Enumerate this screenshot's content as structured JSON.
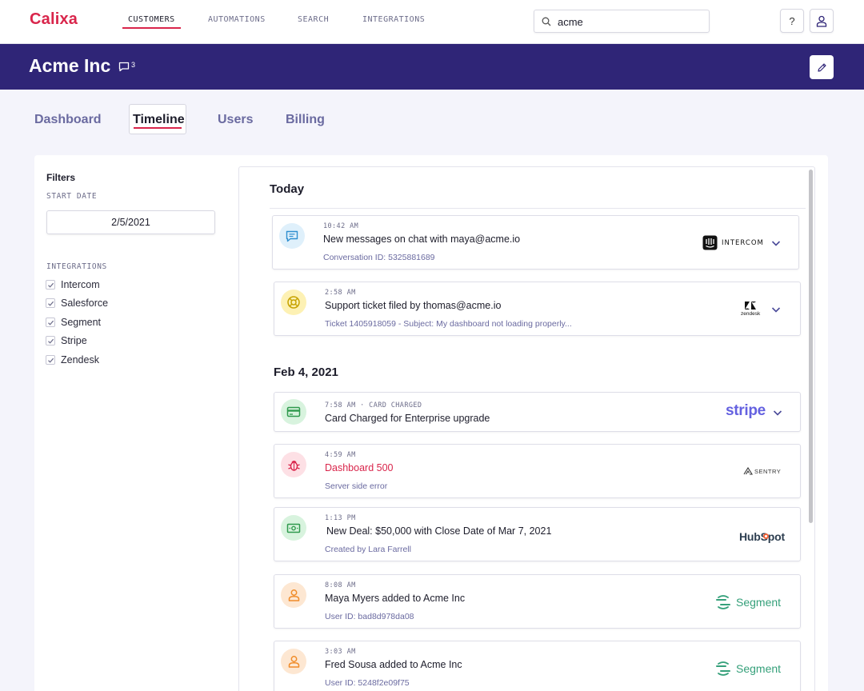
{
  "app": {
    "logo": "Calixa"
  },
  "nav": {
    "items": [
      "CUSTOMERS",
      "AUTOMATIONS",
      "SEARCH",
      "INTEGRATIONS"
    ],
    "active": "CUSTOMERS"
  },
  "search": {
    "value": "acme",
    "icon": "search-icon"
  },
  "top_buttons": {
    "help_label": "?",
    "user_icon": "user-icon"
  },
  "header": {
    "company": "Acme Inc",
    "message_count": "3",
    "edit_icon": "pencil-icon"
  },
  "tabs": {
    "items": [
      "Dashboard",
      "Timeline",
      "Users",
      "Billing"
    ],
    "active": "Timeline"
  },
  "filters": {
    "title": "Filters",
    "start_date_label": "START DATE",
    "start_date": "2/5/2021",
    "integrations_label": "INTEGRATIONS",
    "integrations": [
      "Intercom",
      "Salesforce",
      "Segment",
      "Stripe",
      "Zendesk"
    ]
  },
  "timeline": {
    "sections": [
      {
        "title": "Today",
        "events": [
          {
            "time": "10:42 AM",
            "title": "New messages on chat with maya@acme.io",
            "subtitle": "Conversation ID: 5325881689",
            "source": "INTERCOM",
            "icon": "chat-icon",
            "color": "#dff0fb"
          },
          {
            "time": "2:58 AM",
            "title": "Support ticket filed by thomas@acme.io",
            "subtitle": "Ticket 1405918059 - Subject: My dashboard not loading properly...",
            "source": "zendesk",
            "icon": "lifebuoy-icon",
            "color": "#fdf1b4"
          }
        ]
      },
      {
        "title": "Feb 4, 2021",
        "events": [
          {
            "time": "7:58 AM · CARD CHARGED",
            "title": "Card Charged for Enterprise upgrade",
            "subtitle": "",
            "source": "stripe",
            "icon": "credit-card-icon",
            "color": "#d8f3de"
          },
          {
            "time": "4:59 AM",
            "title": "Dashboard 500",
            "subtitle": "Server side error",
            "source": "SENTRY",
            "icon": "bug-icon",
            "color": "#fde0e5"
          },
          {
            "time": "1:13 PM",
            "title": "New Deal: $50,000 with Close Date of Mar 7, 2021",
            "subtitle": "Created by Lara Farrell",
            "source": "HubSpot",
            "icon": "money-icon",
            "color": "#d8f3de"
          },
          {
            "time": "8:08 AM",
            "title": "Maya Myers added to Acme Inc",
            "subtitle": "User ID: bad8d978da08",
            "source": "Segment",
            "icon": "person-icon",
            "color": "#fde7d2"
          },
          {
            "time": "3:03 AM",
            "title": "Fred Sousa added to Acme Inc",
            "subtitle": "User ID: 5248f2e09f75",
            "source": "Segment",
            "icon": "person-icon",
            "color": "#fde7d2"
          }
        ]
      }
    ]
  },
  "colors": {
    "accent": "#d9254b",
    "header_bg": "#2f2577",
    "link": "#6a6aa0",
    "segment": "#35a07a",
    "stripe": "#6461e0",
    "hubspot_dot": "#f2643a"
  }
}
